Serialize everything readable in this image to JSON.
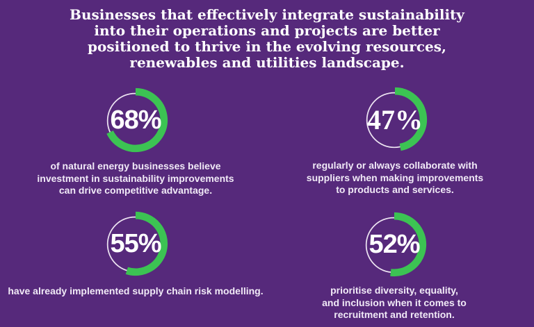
{
  "heading": {
    "lines": [
      "Businesses that effectively integrate sustainability",
      "into their operations and projects are better",
      "positioned to thrive in the evolving resources,",
      "renewables and utilities landscape."
    ],
    "full_text": "Businesses that effectively integrate sustainability into their operations and projects are better positioned to thrive in the evolving resources, renewables and utilities landscape."
  },
  "stats": [
    {
      "percent": 68,
      "value_label": "68%",
      "caption_lines": [
        "of natural energy businesses believe",
        "investment in sustainability improvements",
        "can drive competitive advantage."
      ]
    },
    {
      "percent": 47,
      "value_label": "47%",
      "caption_lines": [
        "regularly or always collaborate with",
        "suppliers when making improvements",
        "to products and services."
      ]
    },
    {
      "percent": 55,
      "value_label": "55%",
      "caption_lines": [
        "have already implemented supply chain risk modelling."
      ]
    },
    {
      "percent": 52,
      "value_label": "52%",
      "caption_lines": [
        "prioritise diversity, equality,",
        "and inclusion when it comes to",
        "recruitment and retention."
      ]
    }
  ],
  "colors": {
    "background": "#56297B",
    "arc_green": "#3CC353",
    "ring_track": "#EDE4F2",
    "heading_text": "#FFFFFF",
    "caption_text": "#F1EAF7"
  },
  "chart_data": {
    "type": "pie",
    "variant": "donut-gauges",
    "title": "Businesses that effectively integrate sustainability into their operations and projects are better positioned to thrive in the evolving resources, renewables and utilities landscape.",
    "legend_position": "none",
    "gauges": [
      {
        "value": 68,
        "max": 100,
        "label": "of natural energy businesses believe investment in sustainability improvements can drive competitive advantage."
      },
      {
        "value": 47,
        "max": 100,
        "label": "regularly or always collaborate with suppliers when making improvements to products and services."
      },
      {
        "value": 55,
        "max": 100,
        "label": "have already implemented supply chain risk modelling."
      },
      {
        "value": 52,
        "max": 100,
        "label": "prioritise diversity, equality, and inclusion when it comes to recruitment and retention."
      }
    ]
  }
}
